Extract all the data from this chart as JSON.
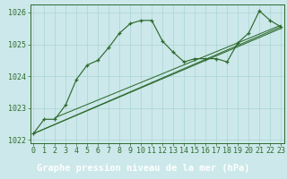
{
  "title": "Graphe pression niveau de la mer (hPa)",
  "hours": [
    0,
    1,
    2,
    3,
    4,
    5,
    6,
    7,
    8,
    9,
    10,
    11,
    12,
    13,
    14,
    15,
    16,
    17,
    18,
    19,
    20,
    21,
    22,
    23
  ],
  "main_line": [
    1022.2,
    1022.65,
    1022.65,
    1023.1,
    1023.9,
    1024.35,
    1024.5,
    1024.9,
    1025.35,
    1025.65,
    1025.75,
    1025.75,
    1025.1,
    1024.75,
    1024.45,
    1024.55,
    1024.55,
    1024.55,
    1024.45,
    1025.05,
    1025.35,
    1026.05,
    1025.75,
    1025.55
  ],
  "line1_pts": [
    [
      0,
      1022.2
    ],
    [
      23,
      1025.5
    ]
  ],
  "line2_pts": [
    [
      0,
      1022.2
    ],
    [
      23,
      1025.55
    ]
  ],
  "line3_pts": [
    [
      2,
      1022.7
    ],
    [
      23,
      1025.6
    ]
  ],
  "line_color": "#2e6b2e",
  "bg_color_plot": "#cce8ea",
  "bg_color_label": "#336633",
  "label_text_color": "#ffffff",
  "grid_color": "#aad4d4",
  "ylim": [
    1021.9,
    1026.25
  ],
  "yticks": [
    1022,
    1023,
    1024,
    1025,
    1026
  ],
  "xlim": [
    -0.3,
    23.3
  ],
  "title_fontsize": 7.5,
  "tick_fontsize": 6.0,
  "marker": "+"
}
